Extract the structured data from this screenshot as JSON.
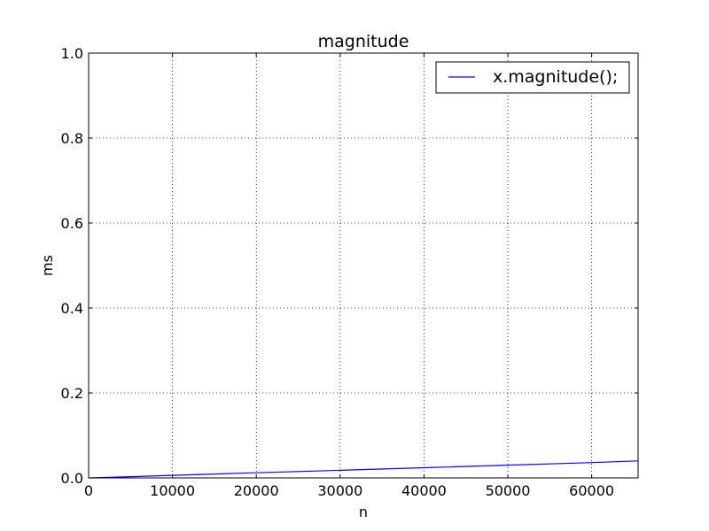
{
  "chart_data": {
    "type": "line",
    "title": "magnitude",
    "xlabel": "n",
    "ylabel": "ms",
    "xlim": [
      0,
      65536
    ],
    "ylim": [
      0.0,
      1.0
    ],
    "xticks": [
      0,
      10000,
      20000,
      30000,
      40000,
      50000,
      60000
    ],
    "xtick_labels": [
      "0",
      "10000",
      "20000",
      "30000",
      "40000",
      "50000",
      "60000"
    ],
    "yticks": [
      0.0,
      0.2,
      0.4,
      0.6,
      0.8,
      1.0
    ],
    "ytick_labels": [
      "0.0",
      "0.2",
      "0.4",
      "0.6",
      "0.8",
      "1.0"
    ],
    "grid": true,
    "legend_position": "top-right",
    "series": [
      {
        "name": "x.magnitude();",
        "color": "#0000ff",
        "x": [
          0,
          5000,
          10000,
          20000,
          30000,
          40000,
          50000,
          60000,
          65536
        ],
        "y": [
          0.0,
          0.003,
          0.006,
          0.012,
          0.018,
          0.024,
          0.03,
          0.036,
          0.04
        ]
      }
    ]
  }
}
